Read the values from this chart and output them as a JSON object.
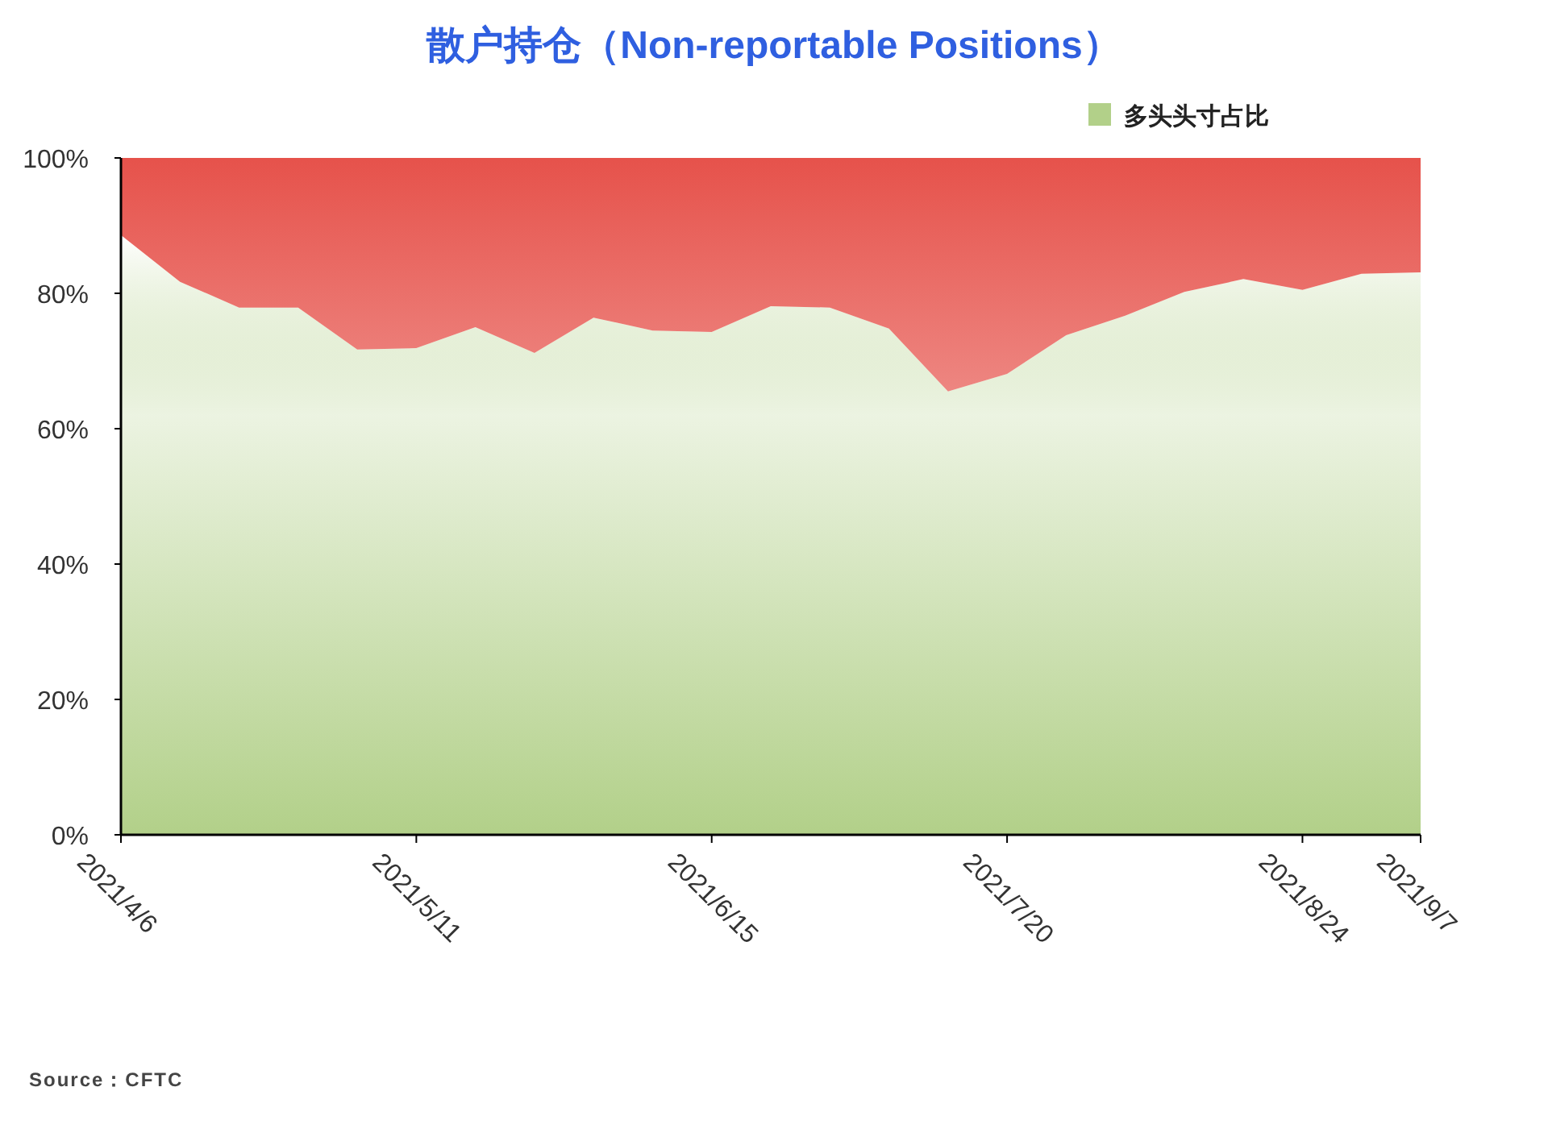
{
  "chart_data": {
    "type": "area",
    "stacked": true,
    "title": "散户持仓（Non-reportable Positions）",
    "x": [
      "2021-04-06",
      "2021-04-13",
      "2021-04-20",
      "2021-04-27",
      "2021-05-04",
      "2021-05-11",
      "2021-05-18",
      "2021-05-25",
      "2021-06-01",
      "2021-06-08",
      "2021-06-15",
      "2021-06-22",
      "2021-06-29",
      "2021-07-06",
      "2021-07-13",
      "2021-07-20",
      "2021-07-27",
      "2021-08-03",
      "2021-08-10",
      "2021-08-17",
      "2021-08-24",
      "2021-08-31",
      "2021-09-07"
    ],
    "series": [
      {
        "name": "多头头寸占比",
        "color": "#b2d089",
        "values": [
          88.6,
          81.7,
          77.9,
          77.9,
          71.7,
          71.9,
          75.0,
          71.2,
          76.4,
          74.5,
          74.3,
          78.1,
          77.9,
          74.8,
          65.5,
          68.1,
          73.8,
          76.7,
          80.2,
          82.1,
          80.5,
          82.9,
          83.1
        ]
      },
      {
        "color": "#e6524b",
        "values": [
          11.4,
          18.3,
          22.1,
          22.1,
          28.3,
          28.1,
          25.0,
          28.8,
          23.6,
          25.5,
          25.7,
          21.9,
          22.1,
          25.2,
          34.5,
          31.9,
          26.2,
          23.3,
          19.8,
          17.9,
          19.5,
          17.1,
          16.9
        ]
      }
    ],
    "xlim": [
      "2021-04-06",
      "2021-09-07"
    ],
    "xticks": [
      {
        "value": "2021-04-06",
        "label": "2021/4/6"
      },
      {
        "value": "2021-05-11",
        "label": "2021/5/11"
      },
      {
        "value": "2021-06-15",
        "label": "2021/6/15"
      },
      {
        "value": "2021-07-20",
        "label": "2021/7/20"
      },
      {
        "value": "2021-08-24",
        "label": "2021/8/24"
      },
      {
        "value": "2021-09-07",
        "label": "2021/9/7"
      }
    ],
    "ylim": [
      0,
      100
    ],
    "yticks": [
      {
        "value": 0,
        "label": "0%"
      },
      {
        "value": 20,
        "label": "20%"
      },
      {
        "value": 40,
        "label": "40%"
      },
      {
        "value": 60,
        "label": "60%"
      },
      {
        "value": 80,
        "label": "80%"
      },
      {
        "value": 100,
        "label": "100%"
      }
    ],
    "legend": "top right",
    "annotations": [
      "Source：CFTC"
    ]
  }
}
